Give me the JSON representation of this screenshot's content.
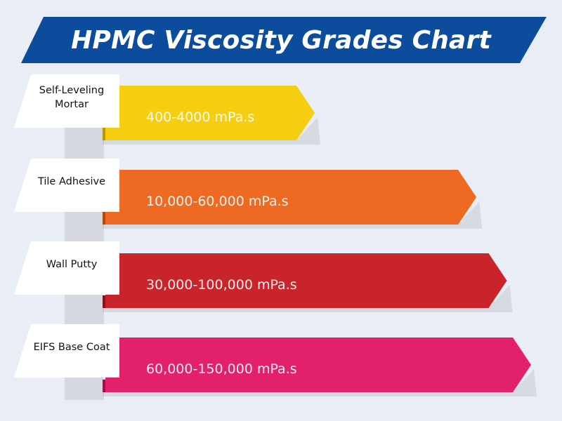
{
  "title": "HPMC Viscosity Grades Chart",
  "colors": {
    "title_banner": "#0b4c9c",
    "background": "#e9eef6",
    "spine": "#d5d9df",
    "bars": [
      "#f5ce12",
      "#ee6a23",
      "#c9232c",
      "#e3216a"
    ],
    "bar_shadows": [
      "#b79a0a",
      "#b04a14",
      "#8c1219",
      "#9f1148"
    ]
  },
  "chart_data": {
    "type": "bar",
    "orientation": "horizontal",
    "title": "HPMC Viscosity Grades Chart",
    "categories": [
      "Self-Leveling Mortar",
      "Tile Adhesive",
      "Wall Putty",
      "EIFS Base Coat"
    ],
    "category_labels": [
      "Self-Leveling\nMortar",
      "Tile Adhesive",
      "Wall Putty",
      "EIFS Base Coat"
    ],
    "value_labels": [
      "400-4000 mPa.s",
      "10,000-60,000 mPa.s",
      "30,000-100,000 mPa.s",
      "60,000-150,000 mPa.s"
    ],
    "ranges": [
      [
        400,
        4000
      ],
      [
        10000,
        60000
      ],
      [
        30000,
        100000
      ],
      [
        60000,
        150000
      ]
    ],
    "units": "mPa.s",
    "xlabel": "",
    "ylabel": ""
  }
}
